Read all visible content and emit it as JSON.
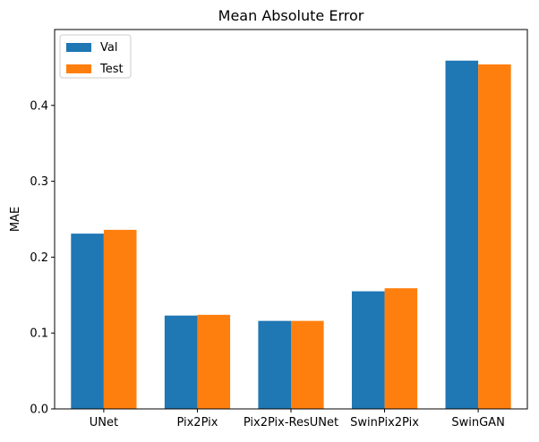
{
  "chart_data": {
    "type": "bar",
    "title": "Mean Absolute Error",
    "xlabel": "",
    "ylabel": "MAE",
    "categories": [
      "UNet",
      "Pix2Pix",
      "Pix2Pix-ResUNet",
      "SwinPix2Pix",
      "SwinGAN"
    ],
    "series": [
      {
        "name": "Val",
        "color": "#1f77b4",
        "values": [
          0.231,
          0.123,
          0.116,
          0.155,
          0.459
        ]
      },
      {
        "name": "Test",
        "color": "#ff7f0e",
        "values": [
          0.236,
          0.124,
          0.116,
          0.159,
          0.454
        ]
      }
    ],
    "ylim": [
      0,
      0.5
    ],
    "yticks": [
      "0.0",
      "0.1",
      "0.2",
      "0.3",
      "0.4"
    ],
    "grid": false,
    "legend_position": "top-left"
  }
}
